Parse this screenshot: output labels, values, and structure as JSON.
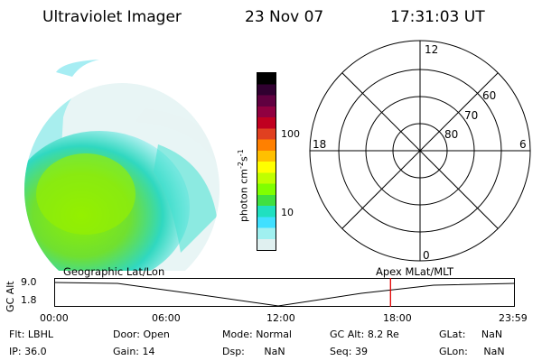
{
  "header": {
    "instrument": "Ultraviolet Imager",
    "date": "23 Nov 07",
    "time": "17:31:03 UT"
  },
  "colorbar": {
    "title_main": "photon cm",
    "title_exp1": "-2",
    "title_mid": "s",
    "title_exp2": "-1",
    "ticks": [
      "100",
      "10"
    ],
    "colors": [
      "#000000",
      "#300030",
      "#600040",
      "#900040",
      "#c00020",
      "#e04020",
      "#ff8000",
      "#ffc000",
      "#ffff00",
      "#c0ff00",
      "#80ff00",
      "#40e040",
      "#20e0c0",
      "#40e0ff",
      "#a0f0f0",
      "#e0f0f0"
    ]
  },
  "polar": {
    "mlt_labels": [
      "12",
      "18",
      "6",
      "0"
    ],
    "lat_labels": [
      "60",
      "70",
      "80"
    ]
  },
  "timeline": {
    "left_label": "Geographic Lat/Lon",
    "right_label": "Apex  MLat/MLT",
    "axis_title": "GC Alt",
    "y_ticks": [
      "9.0",
      "1.8"
    ],
    "x_ticks": [
      "00:00",
      "06:00",
      "12:00",
      "18:00",
      "23:59"
    ],
    "marker_hour": 17.52,
    "marker_color": "#e00000"
  },
  "status": {
    "flt_label": "Flt:",
    "flt_value": "LBHL",
    "ip_label": "IP:",
    "ip_value": "36.0",
    "door_label": "Door:",
    "door_value": "Open",
    "gain_label": "Gain:",
    "gain_value": "14",
    "mode_label": "Mode:",
    "mode_value": "Normal",
    "dsp_label": "Dsp:",
    "dsp_value": "NaN",
    "gcalt_label": "GC Alt:",
    "gcalt_value": "8.2 Re",
    "seq_label": "Seq:",
    "seq_value": "39",
    "glat_label": "GLat:",
    "glat_value": "NaN",
    "glon_label": "GLon:",
    "glon_value": "NaN"
  }
}
